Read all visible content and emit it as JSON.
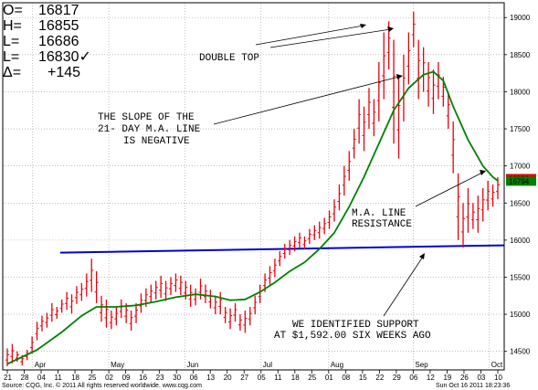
{
  "ohlc_panel": {
    "open_label": "O=",
    "open_value": "16817",
    "high_label": "H=",
    "high_value": "16855",
    "low_label": "L=",
    "low_value": "16686",
    "last_label": "L=",
    "last_value": "16830✓",
    "change_label": "Δ=",
    "change_value": "+145"
  },
  "annotations": [
    {
      "id": "double-top",
      "text": "DOUBLE TOP"
    },
    {
      "id": "slope-line1",
      "text": "THE SLOPE OF THE"
    },
    {
      "id": "slope-line2",
      "text": "21- DAY M.A. LINE"
    },
    {
      "id": "slope-line3",
      "text": "IS NEGATIVE"
    },
    {
      "id": "ma-resistance1",
      "text": "M.A. LINE"
    },
    {
      "id": "ma-resistance2",
      "text": "RESISTANCE"
    },
    {
      "id": "support1",
      "text": "WE IDENTIFIED SUPPORT"
    },
    {
      "id": "support2",
      "text": "AT $1,592.00 SIX WEEKS AGO"
    }
  ],
  "footer": {
    "left": "Source: CQG, Inc. © 2011 All rights reserved worldwide. www.cqg.com",
    "right": "Sun Oct 16 2011 18:23:36"
  },
  "colors": {
    "bars": "#e8000a",
    "ma_line": "#008000",
    "support_line": "#0000dd",
    "grid": "#999999",
    "last_price_bg": "#e8000a",
    "current_price_bg": "#008000"
  },
  "chart_data": {
    "type": "ohlc",
    "ylim": [
      14250,
      19200
    ],
    "y_ticks": [
      "14500",
      "15000",
      "15500",
      "16000",
      "16500",
      "17000",
      "17500",
      "18000",
      "18500",
      "19000"
    ],
    "last_price_marker": "16830",
    "current_price_marker": "16794",
    "support_level": 15920,
    "month_labels": [
      "Apr",
      "May",
      "Jun",
      "Jul",
      "Aug",
      "Sep",
      "Oct"
    ],
    "date_ticks": [
      "21",
      "28",
      "04",
      "11",
      "18",
      "25",
      "02",
      "09",
      "16",
      "23",
      "30",
      "06",
      "13",
      "20",
      "27",
      "05",
      "11",
      "18",
      "25",
      "01",
      "08",
      "15",
      "22",
      "29",
      "06",
      "12",
      "19",
      "26",
      "03",
      "10"
    ],
    "bars": [
      {
        "i": 0,
        "h": 14540,
        "l": 14300
      },
      {
        "i": 1,
        "h": 14600,
        "l": 14340
      },
      {
        "i": 2,
        "h": 14500,
        "l": 14360
      },
      {
        "i": 3,
        "h": 14450,
        "l": 14310
      },
      {
        "i": 4,
        "h": 14520,
        "l": 14380
      },
      {
        "i": 5,
        "h": 14700,
        "l": 14470
      },
      {
        "i": 6,
        "h": 14900,
        "l": 14650
      },
      {
        "i": 7,
        "h": 14980,
        "l": 14770
      },
      {
        "i": 8,
        "h": 15020,
        "l": 14820
      },
      {
        "i": 9,
        "h": 15150,
        "l": 14900
      },
      {
        "i": 10,
        "h": 15100,
        "l": 14940
      },
      {
        "i": 11,
        "h": 15200,
        "l": 15020
      },
      {
        "i": 12,
        "h": 15300,
        "l": 15060
      },
      {
        "i": 13,
        "h": 15270,
        "l": 15010
      },
      {
        "i": 14,
        "h": 15380,
        "l": 15140
      },
      {
        "i": 15,
        "h": 15420,
        "l": 15180
      },
      {
        "i": 16,
        "h": 15550,
        "l": 15240
      },
      {
        "i": 17,
        "h": 15750,
        "l": 15300
      },
      {
        "i": 18,
        "h": 15580,
        "l": 15150
      },
      {
        "i": 19,
        "h": 15250,
        "l": 14900
      },
      {
        "i": 20,
        "h": 15200,
        "l": 14820
      },
      {
        "i": 21,
        "h": 15050,
        "l": 14800
      },
      {
        "i": 22,
        "h": 15100,
        "l": 14850
      },
      {
        "i": 23,
        "h": 15200,
        "l": 14950
      },
      {
        "i": 24,
        "h": 15150,
        "l": 14880
      },
      {
        "i": 25,
        "h": 15050,
        "l": 14780
      },
      {
        "i": 26,
        "h": 15150,
        "l": 14880
      },
      {
        "i": 27,
        "h": 15280,
        "l": 15020
      },
      {
        "i": 28,
        "h": 15350,
        "l": 15100
      },
      {
        "i": 29,
        "h": 15400,
        "l": 15150
      },
      {
        "i": 30,
        "h": 15450,
        "l": 15200
      },
      {
        "i": 31,
        "h": 15520,
        "l": 15220
      },
      {
        "i": 32,
        "h": 15450,
        "l": 15180
      },
      {
        "i": 33,
        "h": 15500,
        "l": 15260
      },
      {
        "i": 34,
        "h": 15550,
        "l": 15300
      },
      {
        "i": 35,
        "h": 15520,
        "l": 15260
      },
      {
        "i": 36,
        "h": 15450,
        "l": 15200
      },
      {
        "i": 37,
        "h": 15400,
        "l": 15100
      },
      {
        "i": 38,
        "h": 15350,
        "l": 15120
      },
      {
        "i": 39,
        "h": 15480,
        "l": 15200
      },
      {
        "i": 40,
        "h": 15400,
        "l": 15150
      },
      {
        "i": 41,
        "h": 15330,
        "l": 15080
      },
      {
        "i": 42,
        "h": 15250,
        "l": 15000
      },
      {
        "i": 43,
        "h": 15300,
        "l": 15000
      },
      {
        "i": 44,
        "h": 15100,
        "l": 14880
      },
      {
        "i": 45,
        "h": 15080,
        "l": 14800
      },
      {
        "i": 46,
        "h": 15150,
        "l": 14900
      },
      {
        "i": 47,
        "h": 15000,
        "l": 14780
      },
      {
        "i": 48,
        "h": 15050,
        "l": 14750
      },
      {
        "i": 49,
        "h": 15100,
        "l": 14850
      },
      {
        "i": 50,
        "h": 15250,
        "l": 15000
      },
      {
        "i": 51,
        "h": 15400,
        "l": 15150
      },
      {
        "i": 52,
        "h": 15550,
        "l": 15300
      },
      {
        "i": 53,
        "h": 15650,
        "l": 15400
      },
      {
        "i": 54,
        "h": 15750,
        "l": 15500
      },
      {
        "i": 55,
        "h": 15850,
        "l": 15650
      },
      {
        "i": 56,
        "h": 15950,
        "l": 15750
      },
      {
        "i": 57,
        "h": 16000,
        "l": 15800
      },
      {
        "i": 58,
        "h": 16050,
        "l": 15850
      },
      {
        "i": 59,
        "h": 16100,
        "l": 15900
      },
      {
        "i": 60,
        "h": 16050,
        "l": 15880
      },
      {
        "i": 61,
        "h": 16150,
        "l": 15950
      },
      {
        "i": 62,
        "h": 16200,
        "l": 16000
      },
      {
        "i": 63,
        "h": 16250,
        "l": 16020
      },
      {
        "i": 64,
        "h": 16300,
        "l": 16080
      },
      {
        "i": 65,
        "h": 16400,
        "l": 16150
      },
      {
        "i": 66,
        "h": 16550,
        "l": 16250
      },
      {
        "i": 67,
        "h": 16750,
        "l": 16400
      },
      {
        "i": 68,
        "h": 17000,
        "l": 16600
      },
      {
        "i": 69,
        "h": 17200,
        "l": 16800
      },
      {
        "i": 70,
        "h": 17500,
        "l": 17100
      },
      {
        "i": 71,
        "h": 17900,
        "l": 17300
      },
      {
        "i": 72,
        "h": 17800,
        "l": 17200
      },
      {
        "i": 73,
        "h": 18050,
        "l": 17500
      },
      {
        "i": 74,
        "h": 17900,
        "l": 17400
      },
      {
        "i": 75,
        "h": 18400,
        "l": 17600
      },
      {
        "i": 76,
        "h": 18800,
        "l": 17900
      },
      {
        "i": 77,
        "h": 18950,
        "l": 18300
      },
      {
        "i": 78,
        "h": 18700,
        "l": 17300
      },
      {
        "i": 79,
        "h": 18200,
        "l": 17100
      },
      {
        "i": 80,
        "h": 18500,
        "l": 17600
      },
      {
        "i": 81,
        "h": 18800,
        "l": 18100
      },
      {
        "i": 82,
        "h": 19080,
        "l": 18600
      },
      {
        "i": 83,
        "h": 18700,
        "l": 17900
      },
      {
        "i": 84,
        "h": 18600,
        "l": 18000
      },
      {
        "i": 85,
        "h": 18400,
        "l": 17800
      },
      {
        "i": 86,
        "h": 18300,
        "l": 17700
      },
      {
        "i": 87,
        "h": 18400,
        "l": 17900
      },
      {
        "i": 88,
        "h": 18200,
        "l": 17800
      },
      {
        "i": 89,
        "h": 18000,
        "l": 17500
      },
      {
        "i": 90,
        "h": 17600,
        "l": 16900
      },
      {
        "i": 91,
        "h": 16900,
        "l": 16000
      },
      {
        "i": 92,
        "h": 16500,
        "l": 15900
      },
      {
        "i": 93,
        "h": 16700,
        "l": 16100
      },
      {
        "i": 94,
        "h": 16500,
        "l": 16150
      },
      {
        "i": 95,
        "h": 16600,
        "l": 16100
      },
      {
        "i": 96,
        "h": 16700,
        "l": 16250
      },
      {
        "i": 97,
        "h": 16800,
        "l": 16400
      },
      {
        "i": 98,
        "h": 16750,
        "l": 16450
      },
      {
        "i": 99,
        "h": 16850,
        "l": 16550
      }
    ],
    "ma21": [
      [
        0,
        14330
      ],
      [
        6,
        14520
      ],
      [
        11,
        14760
      ],
      [
        15,
        14980
      ],
      [
        18,
        15100
      ],
      [
        22,
        15100
      ],
      [
        26,
        15120
      ],
      [
        30,
        15170
      ],
      [
        34,
        15230
      ],
      [
        38,
        15270
      ],
      [
        42,
        15240
      ],
      [
        45,
        15190
      ],
      [
        48,
        15200
      ],
      [
        51,
        15300
      ],
      [
        54,
        15430
      ],
      [
        57,
        15580
      ],
      [
        60,
        15700
      ],
      [
        63,
        15880
      ],
      [
        66,
        16100
      ],
      [
        69,
        16450
      ],
      [
        72,
        16850
      ],
      [
        75,
        17300
      ],
      [
        78,
        17750
      ],
      [
        81,
        18050
      ],
      [
        84,
        18230
      ],
      [
        86,
        18270
      ],
      [
        88,
        18150
      ],
      [
        90,
        17800
      ],
      [
        93,
        17350
      ],
      [
        96,
        17000
      ],
      [
        98,
        16850
      ],
      [
        99,
        16800
      ]
    ]
  }
}
